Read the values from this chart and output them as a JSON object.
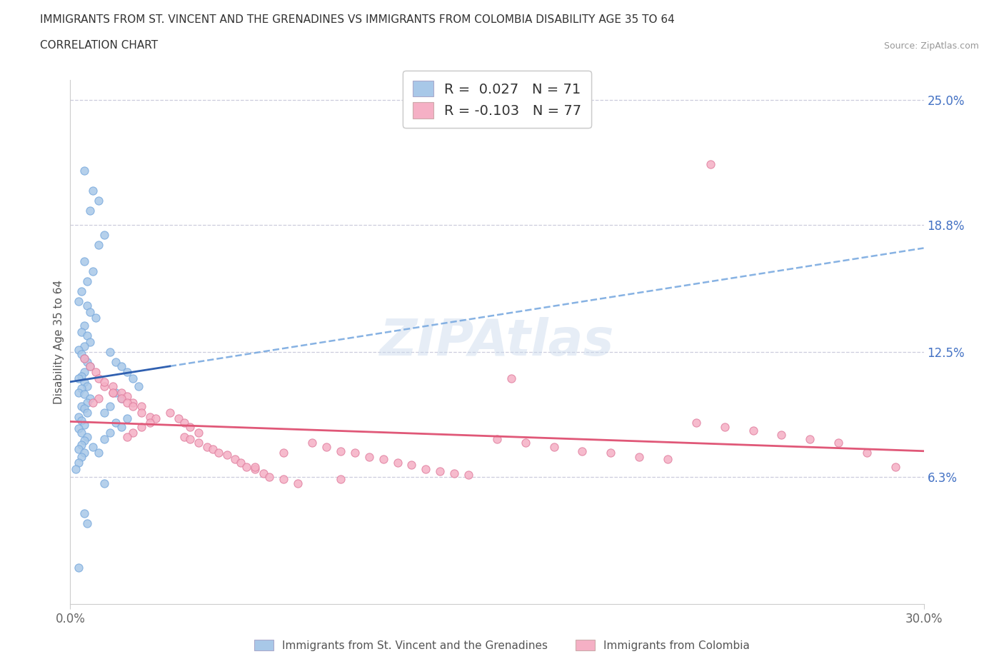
{
  "title": "IMMIGRANTS FROM ST. VINCENT AND THE GRENADINES VS IMMIGRANTS FROM COLOMBIA DISABILITY AGE 35 TO 64",
  "subtitle": "CORRELATION CHART",
  "source": "Source: ZipAtlas.com",
  "ylabel": "Disability Age 35 to 64",
  "xlim": [
    0.0,
    0.3
  ],
  "ylim": [
    0.0,
    0.26
  ],
  "xticklabels": [
    "0.0%",
    "30.0%"
  ],
  "ytick_right_labels": [
    "25.0%",
    "18.8%",
    "12.5%",
    "6.3%"
  ],
  "ytick_right_values": [
    0.25,
    0.188,
    0.125,
    0.063
  ],
  "hline_values": [
    0.25,
    0.188,
    0.125,
    0.063
  ],
  "blue_R": 0.027,
  "blue_N": 71,
  "pink_R": -0.103,
  "pink_N": 77,
  "blue_color": "#a8c8e8",
  "pink_color": "#f5b0c5",
  "blue_line_color": "#3060b0",
  "pink_line_color": "#e05878",
  "legend_label_blue": "Immigrants from St. Vincent and the Grenadines",
  "legend_label_pink": "Immigrants from Colombia",
  "background_color": "#ffffff",
  "title_color": "#333333",
  "axis_label_color": "#555555",
  "right_tick_color": "#4472c4",
  "hline_color": "#ccccdd",
  "watermark_color": "#c8d8ec",
  "watermark_alpha": 0.45,
  "blue_scatter_x": [
    0.005,
    0.008,
    0.01,
    0.007,
    0.012,
    0.01,
    0.005,
    0.008,
    0.006,
    0.004,
    0.003,
    0.006,
    0.007,
    0.009,
    0.005,
    0.004,
    0.006,
    0.007,
    0.005,
    0.003,
    0.004,
    0.005,
    0.006,
    0.007,
    0.005,
    0.004,
    0.003,
    0.005,
    0.006,
    0.004,
    0.003,
    0.005,
    0.007,
    0.006,
    0.004,
    0.005,
    0.006,
    0.003,
    0.004,
    0.005,
    0.003,
    0.004,
    0.006,
    0.005,
    0.004,
    0.003,
    0.005,
    0.004,
    0.003,
    0.002,
    0.014,
    0.016,
    0.018,
    0.02,
    0.022,
    0.024,
    0.016,
    0.018,
    0.014,
    0.012,
    0.02,
    0.016,
    0.018,
    0.014,
    0.012,
    0.008,
    0.01,
    0.012,
    0.005,
    0.006,
    0.003
  ],
  "blue_scatter_y": [
    0.215,
    0.205,
    0.2,
    0.195,
    0.183,
    0.178,
    0.17,
    0.165,
    0.16,
    0.155,
    0.15,
    0.148,
    0.145,
    0.142,
    0.138,
    0.135,
    0.133,
    0.13,
    0.128,
    0.126,
    0.124,
    0.122,
    0.12,
    0.118,
    0.115,
    0.113,
    0.112,
    0.11,
    0.108,
    0.107,
    0.105,
    0.104,
    0.102,
    0.1,
    0.098,
    0.097,
    0.095,
    0.093,
    0.091,
    0.089,
    0.087,
    0.085,
    0.083,
    0.081,
    0.079,
    0.077,
    0.075,
    0.073,
    0.07,
    0.067,
    0.125,
    0.12,
    0.118,
    0.115,
    0.112,
    0.108,
    0.105,
    0.102,
    0.098,
    0.095,
    0.092,
    0.09,
    0.088,
    0.085,
    0.082,
    0.078,
    0.075,
    0.06,
    0.045,
    0.04,
    0.018
  ],
  "pink_scatter_x": [
    0.005,
    0.007,
    0.009,
    0.01,
    0.012,
    0.015,
    0.01,
    0.008,
    0.012,
    0.015,
    0.018,
    0.02,
    0.022,
    0.025,
    0.015,
    0.018,
    0.02,
    0.022,
    0.025,
    0.028,
    0.03,
    0.028,
    0.025,
    0.022,
    0.02,
    0.035,
    0.038,
    0.04,
    0.042,
    0.045,
    0.04,
    0.042,
    0.045,
    0.048,
    0.05,
    0.052,
    0.055,
    0.058,
    0.06,
    0.062,
    0.065,
    0.068,
    0.07,
    0.075,
    0.08,
    0.085,
    0.09,
    0.095,
    0.1,
    0.105,
    0.11,
    0.115,
    0.12,
    0.125,
    0.13,
    0.135,
    0.14,
    0.15,
    0.16,
    0.17,
    0.18,
    0.19,
    0.2,
    0.21,
    0.22,
    0.23,
    0.24,
    0.25,
    0.26,
    0.27,
    0.28,
    0.29,
    0.225,
    0.155,
    0.065,
    0.075,
    0.095
  ],
  "pink_scatter_y": [
    0.122,
    0.118,
    0.115,
    0.112,
    0.108,
    0.105,
    0.102,
    0.1,
    0.11,
    0.108,
    0.105,
    0.103,
    0.1,
    0.098,
    0.105,
    0.102,
    0.1,
    0.098,
    0.095,
    0.093,
    0.092,
    0.09,
    0.088,
    0.085,
    0.083,
    0.095,
    0.092,
    0.09,
    0.088,
    0.085,
    0.083,
    0.082,
    0.08,
    0.078,
    0.077,
    0.075,
    0.074,
    0.072,
    0.07,
    0.068,
    0.067,
    0.065,
    0.063,
    0.062,
    0.06,
    0.08,
    0.078,
    0.076,
    0.075,
    0.073,
    0.072,
    0.07,
    0.069,
    0.067,
    0.066,
    0.065,
    0.064,
    0.082,
    0.08,
    0.078,
    0.076,
    0.075,
    0.073,
    0.072,
    0.09,
    0.088,
    0.086,
    0.084,
    0.082,
    0.08,
    0.075,
    0.068,
    0.218,
    0.112,
    0.068,
    0.075,
    0.062
  ]
}
